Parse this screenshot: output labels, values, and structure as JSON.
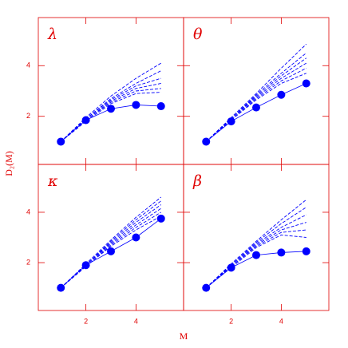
{
  "xlabel": "M",
  "ylabel": "D₂(M)",
  "chart_data": [
    {
      "type": "line",
      "title": "λ",
      "x": [
        1,
        2,
        3,
        4,
        5
      ],
      "xlim": [
        0.1,
        5.9
      ],
      "ylim": [
        0.1,
        5.9
      ],
      "xticks": [
        2,
        4
      ],
      "yticks": [
        2,
        4
      ],
      "series": [
        {
          "color": "#0000ff",
          "style": "solid",
          "marker": "circle",
          "values": [
            1,
            1.85,
            2.3,
            2.45,
            2.4
          ]
        },
        {
          "color": "#0000ff",
          "style": "dashed",
          "values": [
            1,
            1.95,
            2.8,
            3.5,
            4.1
          ]
        },
        {
          "color": "#0000ff",
          "style": "dashed",
          "values": [
            1,
            1.9,
            2.7,
            3.3,
            3.8
          ]
        },
        {
          "color": "#0000ff",
          "style": "dashed",
          "values": [
            1,
            1.9,
            2.65,
            3.2,
            3.5
          ]
        },
        {
          "color": "#0000ff",
          "style": "dashed",
          "values": [
            1,
            1.85,
            2.6,
            3.1,
            3.3
          ]
        },
        {
          "color": "#0000ff",
          "style": "dashed",
          "values": [
            1,
            1.85,
            2.55,
            3.0,
            3.1
          ]
        },
        {
          "color": "#0000ff",
          "style": "dashed",
          "values": [
            1,
            1.8,
            2.5,
            2.9,
            2.95
          ]
        }
      ]
    },
    {
      "type": "line",
      "title": "θ",
      "x": [
        1,
        2,
        3,
        4,
        5
      ],
      "xlim": [
        0.1,
        5.9
      ],
      "ylim": [
        0.1,
        5.9
      ],
      "xticks": [
        2,
        4
      ],
      "yticks": [
        2,
        4
      ],
      "series": [
        {
          "color": "#0000ff",
          "style": "solid",
          "marker": "circle",
          "values": [
            1,
            1.8,
            2.35,
            2.85,
            3.3
          ]
        },
        {
          "color": "#0000ff",
          "style": "dashed",
          "values": [
            1,
            1.95,
            2.9,
            3.9,
            4.85
          ]
        },
        {
          "color": "#0000ff",
          "style": "dashed",
          "values": [
            1,
            1.9,
            2.85,
            3.7,
            4.5
          ]
        },
        {
          "color": "#0000ff",
          "style": "dashed",
          "values": [
            1,
            1.9,
            2.8,
            3.6,
            4.3
          ]
        },
        {
          "color": "#0000ff",
          "style": "dashed",
          "values": [
            1,
            1.9,
            2.75,
            3.5,
            4.1
          ]
        },
        {
          "color": "#0000ff",
          "style": "dashed",
          "values": [
            1,
            1.85,
            2.7,
            3.4,
            3.9
          ]
        },
        {
          "color": "#0000ff",
          "style": "dashed",
          "values": [
            1,
            1.85,
            2.65,
            3.3,
            3.7
          ]
        }
      ]
    },
    {
      "type": "line",
      "title": "κ",
      "x": [
        1,
        2,
        3,
        4,
        5
      ],
      "xlim": [
        0.1,
        5.9
      ],
      "ylim": [
        0.1,
        5.9
      ],
      "xticks": [
        2,
        4
      ],
      "yticks": [
        2,
        4
      ],
      "series": [
        {
          "color": "#0000ff",
          "style": "solid",
          "marker": "circle",
          "values": [
            1,
            1.9,
            2.45,
            3.0,
            3.75
          ]
        },
        {
          "color": "#0000ff",
          "style": "dashed",
          "values": [
            1,
            1.95,
            2.9,
            3.8,
            4.6
          ]
        },
        {
          "color": "#0000ff",
          "style": "dashed",
          "values": [
            1,
            1.9,
            2.85,
            3.7,
            4.45
          ]
        },
        {
          "color": "#0000ff",
          "style": "dashed",
          "values": [
            1,
            1.9,
            2.8,
            3.6,
            4.3
          ]
        },
        {
          "color": "#0000ff",
          "style": "dashed",
          "values": [
            1,
            1.9,
            2.75,
            3.5,
            4.15
          ]
        },
        {
          "color": "#0000ff",
          "style": "dashed",
          "values": [
            1,
            1.85,
            2.7,
            3.4,
            4.0
          ]
        },
        {
          "color": "#0000ff",
          "style": "dashed",
          "values": [
            1,
            1.85,
            2.65,
            3.3,
            3.85
          ]
        }
      ]
    },
    {
      "type": "line",
      "title": "β",
      "x": [
        1,
        2,
        3,
        4,
        5
      ],
      "xlim": [
        0.1,
        5.9
      ],
      "ylim": [
        0.1,
        5.9
      ],
      "xticks": [
        2,
        4
      ],
      "yticks": [
        2,
        4
      ],
      "series": [
        {
          "color": "#0000ff",
          "style": "solid",
          "marker": "circle",
          "values": [
            1,
            1.8,
            2.3,
            2.4,
            2.45
          ]
        },
        {
          "color": "#0000ff",
          "style": "dashed",
          "values": [
            1,
            1.95,
            2.85,
            3.7,
            4.5
          ]
        },
        {
          "color": "#0000ff",
          "style": "dashed",
          "values": [
            1,
            1.9,
            2.8,
            3.55,
            4.2
          ]
        },
        {
          "color": "#0000ff",
          "style": "dashed",
          "values": [
            1,
            1.9,
            2.75,
            3.4,
            3.9
          ]
        },
        {
          "color": "#0000ff",
          "style": "dashed",
          "values": [
            1,
            1.85,
            2.7,
            3.3,
            3.6
          ]
        },
        {
          "color": "#0000ff",
          "style": "dashed",
          "values": [
            1,
            1.85,
            2.65,
            3.2,
            3.3
          ]
        },
        {
          "color": "#0000ff",
          "style": "dashed",
          "values": [
            1,
            1.8,
            2.6,
            3.1,
            3.0
          ]
        }
      ]
    }
  ]
}
